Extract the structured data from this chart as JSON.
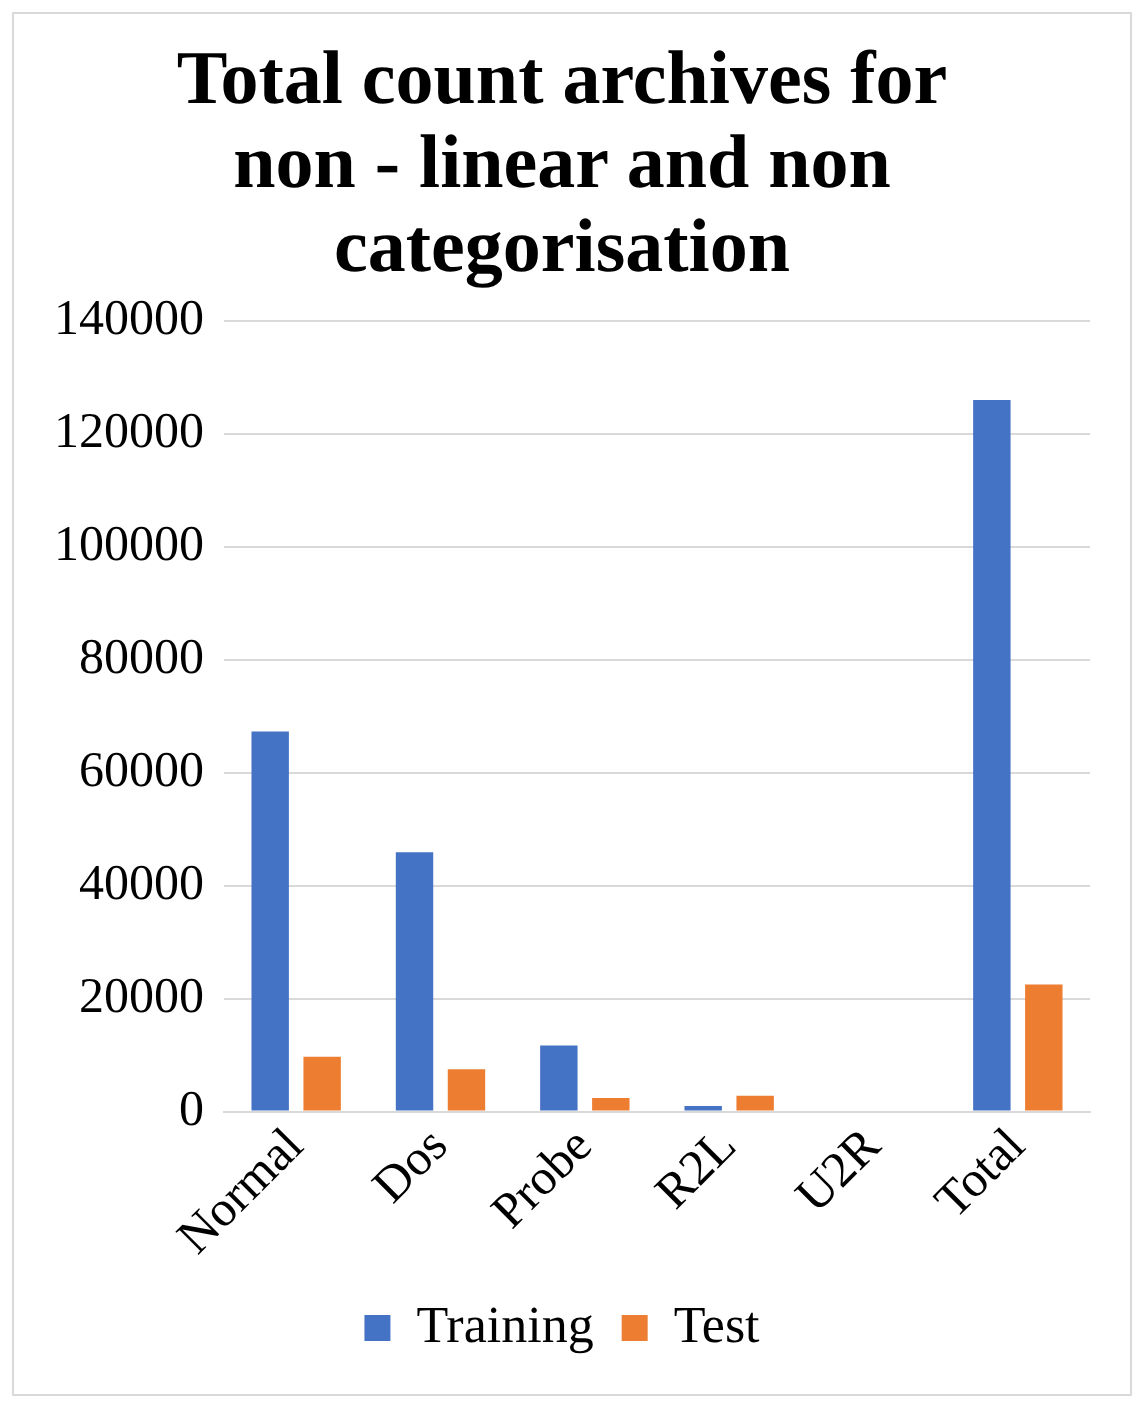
{
  "chart_data": {
    "type": "bar",
    "title": "Total count archives for non - linear and non categorisation",
    "categories": [
      "Normal",
      "Dos",
      "Probe",
      "R2L",
      "U2R",
      "Total"
    ],
    "series": [
      {
        "name": "Training",
        "color": "#4472c4",
        "values": [
          67300,
          45900,
          11700,
          1000,
          null,
          126000
        ]
      },
      {
        "name": "Test",
        "color": "#ed7d31",
        "values": [
          9700,
          7500,
          2400,
          2800,
          null,
          22500
        ]
      }
    ],
    "ylim": [
      0,
      140000
    ],
    "yticks": [
      0,
      20000,
      40000,
      60000,
      80000,
      100000,
      120000,
      140000
    ],
    "grid": "y",
    "legend": "bottom"
  }
}
